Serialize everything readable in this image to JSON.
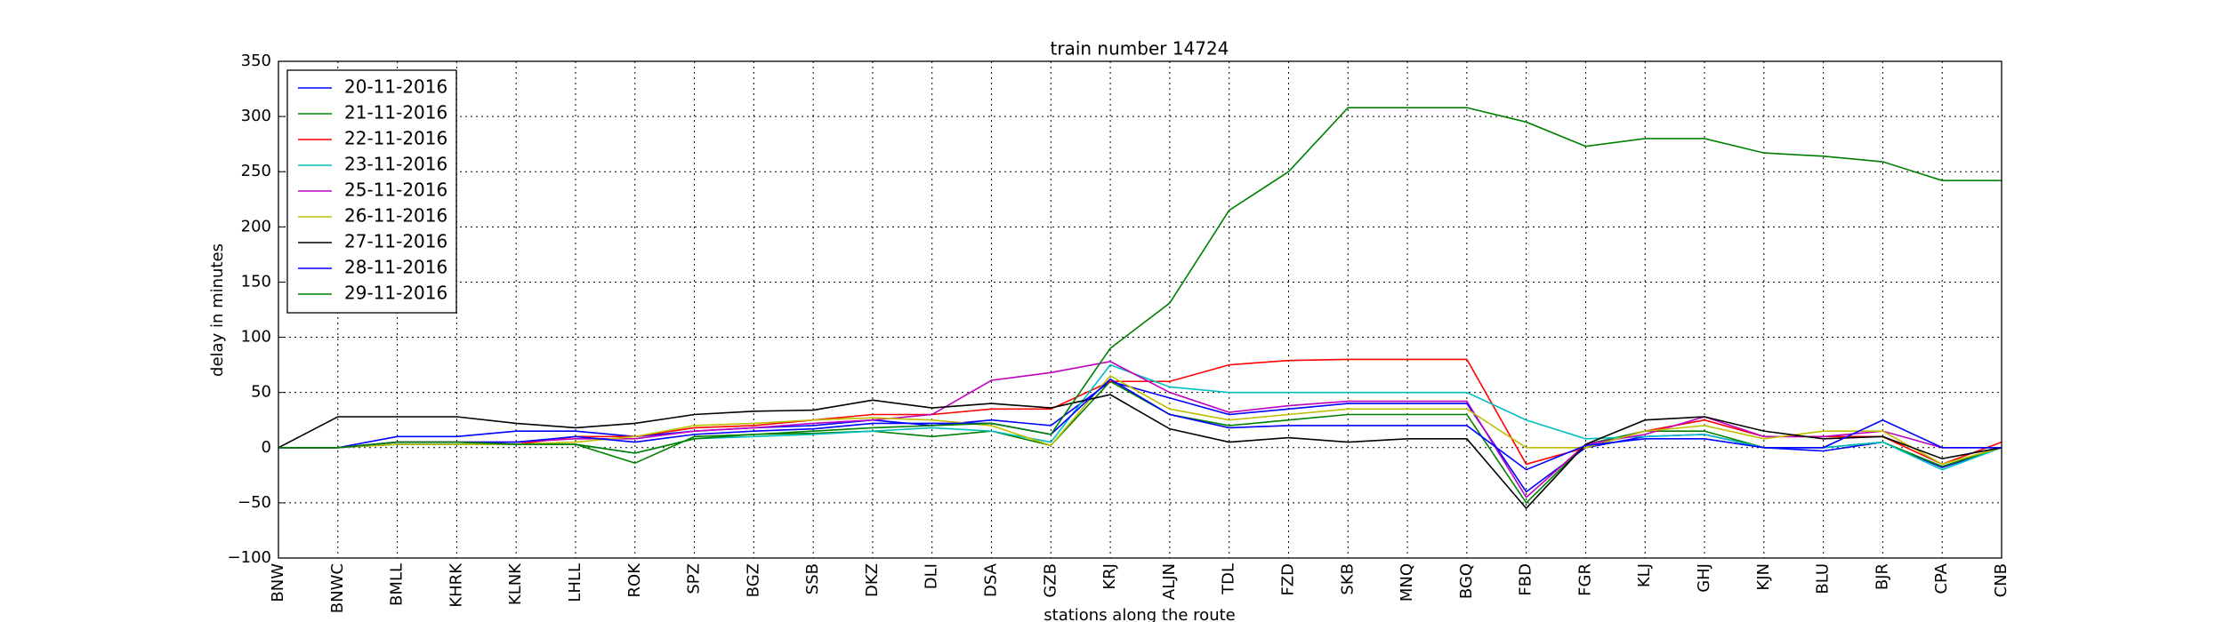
{
  "chart_data": {
    "type": "line",
    "title": "train number 14724",
    "x_label": "stations along the route",
    "y_label": "delay in minutes",
    "categories": [
      "BNW",
      "BNWC",
      "BMLL",
      "KHRK",
      "KLNK",
      "LHLL",
      "ROK",
      "SPZ",
      "BGZ",
      "SSB",
      "DKZ",
      "DLI",
      "DSA",
      "GZB",
      "KRJ",
      "ALJN",
      "TDL",
      "FZD",
      "SKB",
      "MNQ",
      "BGQ",
      "FBD",
      "FGR",
      "KLJ",
      "GHJ",
      "KJN",
      "BLU",
      "BJR",
      "CPA",
      "CNB"
    ],
    "series": [
      {
        "name": "20-11-2016",
        "color": "#0000ff",
        "values": [
          0,
          0,
          10,
          10,
          15,
          15,
          10,
          15,
          18,
          20,
          25,
          20,
          25,
          20,
          60,
          45,
          30,
          35,
          40,
          40,
          40,
          -40,
          0,
          10,
          12,
          0,
          -3,
          5,
          -18,
          0
        ]
      },
      {
        "name": "21-11-2016",
        "color": "#008000",
        "values": [
          0,
          0,
          3,
          3,
          3,
          3,
          -14,
          10,
          12,
          13,
          15,
          10,
          15,
          2,
          60,
          30,
          20,
          25,
          30,
          30,
          30,
          -50,
          3,
          15,
          15,
          0,
          0,
          5,
          -17,
          0
        ]
      },
      {
        "name": "22-11-2016",
        "color": "#ff0000",
        "values": [
          0,
          0,
          5,
          5,
          3,
          10,
          10,
          18,
          20,
          25,
          30,
          30,
          35,
          35,
          60,
          60,
          75,
          79,
          80,
          80,
          80,
          -15,
          0,
          15,
          25,
          10,
          10,
          10,
          -15,
          5
        ]
      },
      {
        "name": "23-11-2016",
        "color": "#00bfbf",
        "values": [
          0,
          0,
          3,
          3,
          3,
          3,
          -5,
          8,
          10,
          12,
          15,
          18,
          15,
          5,
          75,
          55,
          50,
          50,
          50,
          50,
          50,
          25,
          8,
          10,
          12,
          0,
          0,
          5,
          -20,
          0
        ]
      },
      {
        "name": "25-11-2016",
        "color": "#bf00bf",
        "values": [
          0,
          0,
          5,
          5,
          5,
          8,
          8,
          15,
          18,
          22,
          25,
          30,
          61,
          68,
          78,
          50,
          32,
          38,
          42,
          42,
          42,
          -45,
          3,
          12,
          28,
          10,
          10,
          15,
          0,
          0
        ]
      },
      {
        "name": "26-11-2016",
        "color": "#bfbf00",
        "values": [
          0,
          0,
          3,
          3,
          3,
          5,
          10,
          20,
          22,
          25,
          27,
          25,
          20,
          2,
          65,
          35,
          25,
          30,
          35,
          35,
          35,
          0,
          0,
          15,
          20,
          8,
          15,
          15,
          -15,
          0
        ]
      },
      {
        "name": "27-11-2016",
        "color": "#000000",
        "values": [
          0,
          28,
          28,
          28,
          22,
          18,
          22,
          30,
          33,
          34,
          43,
          36,
          40,
          36,
          48,
          17,
          5,
          9,
          5,
          8,
          8,
          -55,
          3,
          25,
          28,
          15,
          8,
          10,
          -10,
          0
        ]
      },
      {
        "name": "28-11-2016",
        "color": "#0000ff",
        "values": [
          0,
          0,
          5,
          5,
          5,
          10,
          5,
          12,
          15,
          17,
          22,
          22,
          22,
          12,
          62,
          30,
          18,
          20,
          20,
          20,
          20,
          -20,
          2,
          8,
          8,
          0,
          0,
          25,
          0,
          0
        ]
      },
      {
        "name": "29-11-2016",
        "color": "#008000",
        "values": [
          0,
          0,
          5,
          5,
          3,
          3,
          -5,
          8,
          12,
          15,
          18,
          20,
          22,
          12,
          90,
          131,
          215,
          250,
          308,
          308,
          308,
          295,
          273,
          280,
          280,
          267,
          264,
          259,
          242,
          242
        ]
      }
    ],
    "ylim": [
      -100,
      350
    ],
    "yticks": [
      {
        "value": -100,
        "label": "−100"
      },
      {
        "value": -50,
        "label": "−50"
      },
      0,
      50,
      100,
      150,
      200,
      250,
      300,
      350
    ],
    "grid": true,
    "legend": "upper left"
  }
}
